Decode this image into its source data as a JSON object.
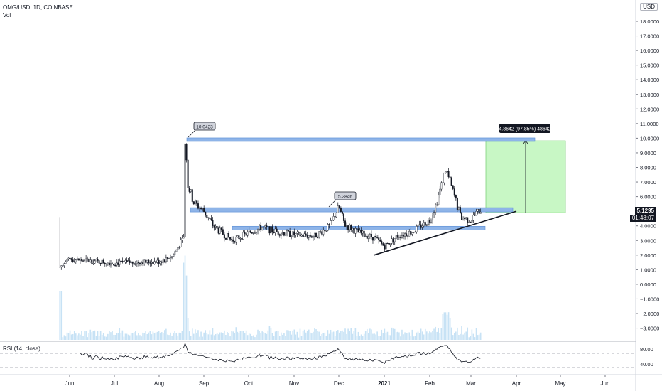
{
  "header": {
    "symbol": "OMG/USD, 1D, COINBASE",
    "volume_label": "Vol",
    "rsi_label": "RSI (14, close)"
  },
  "currency_button": "USD",
  "last_price": "5.1295",
  "countdown": "01:48:07",
  "colors": {
    "up": "#26a69a",
    "candle": "#131722",
    "zone": "#8eb4e8",
    "target": "#c8f7c5",
    "volume": "#c7e2f5",
    "rsi": "#131722"
  },
  "chart_data": [
    {
      "type": "candlestick",
      "title": "OMG/USD, 1D, COINBASE",
      "y_axis": {
        "ticks": [
          "18.0000",
          "17.0000",
          "16.0000",
          "15.0000",
          "14.0000",
          "13.0000",
          "12.0000",
          "11.0000",
          "10.0000",
          "9.0000",
          "8.0000",
          "7.0000",
          "6.0000",
          "5.0000",
          "4.0000",
          "3.0000",
          "2.0000",
          "1.0000",
          "0.0000",
          "−1.0000",
          "−2.0000",
          "−3.0000"
        ],
        "ylim": [
          -3.5,
          19
        ]
      },
      "x_axis": {
        "ticks": [
          "Jun",
          "Jul",
          "Aug",
          "Sep",
          "Oct",
          "Nov",
          "Dec",
          "2021",
          "Feb",
          "Mar",
          "Apr",
          "May",
          "Jun"
        ]
      },
      "series_close": [
        [
          "May 25",
          1.2
        ],
        [
          "Jun 1",
          1.7
        ],
        [
          "Jun 15",
          1.6
        ],
        [
          "Jul 1",
          1.45
        ],
        [
          "Jul 15",
          1.5
        ],
        [
          "Aug 1",
          1.55
        ],
        [
          "Aug 10",
          1.9
        ],
        [
          "Aug 18",
          3.2
        ],
        [
          "Aug 19",
          10.0
        ],
        [
          "Aug 21",
          6.8
        ],
        [
          "Aug 25",
          5.6
        ],
        [
          "Sep 1",
          5.0
        ],
        [
          "Sep 8",
          3.9
        ],
        [
          "Sep 20",
          3.0
        ],
        [
          "Oct 1",
          3.5
        ],
        [
          "Oct 10",
          3.9
        ],
        [
          "Oct 20",
          3.6
        ],
        [
          "Nov 1",
          3.4
        ],
        [
          "Nov 15",
          3.3
        ],
        [
          "Nov 25",
          4.0
        ],
        [
          "Dec 1",
          5.3
        ],
        [
          "Dec 5",
          4.1
        ],
        [
          "Dec 15",
          3.5
        ],
        [
          "Dec 25",
          3.2
        ],
        [
          "Jan 1",
          2.6
        ],
        [
          "Jan 10",
          3.3
        ],
        [
          "Jan 20",
          3.6
        ],
        [
          "Feb 1",
          4.4
        ],
        [
          "Feb 5",
          5.4
        ],
        [
          "Feb 12",
          7.9
        ],
        [
          "Feb 16",
          6.6
        ],
        [
          "Feb 22",
          4.6
        ],
        [
          "Mar 1",
          4.4
        ],
        [
          "Mar 5",
          4.9
        ],
        [
          "Mar 8",
          5.13
        ]
      ],
      "annotations": [
        {
          "label": "10.0423",
          "value": 10.0423
        },
        {
          "label": "5.2846",
          "value": 5.2846
        },
        {
          "label": "4.8642 (97.85%) 48642",
          "from": 4.9,
          "to": 9.82
        }
      ],
      "zones": [
        {
          "name": "resistance",
          "value": 9.9
        },
        {
          "name": "mid",
          "value": 5.1
        },
        {
          "name": "support",
          "value": 3.85
        }
      ],
      "trendline": {
        "from": [
          "Dec 25",
          2.0
        ],
        "to": [
          "Apr 1",
          5.0
        ]
      },
      "last_price": 5.1295
    },
    {
      "type": "line",
      "title": "RSI (14, close)",
      "y_axis": {
        "ticks": [
          "80.00",
          "40.00"
        ]
      },
      "levels": [
        70,
        30
      ]
    }
  ]
}
